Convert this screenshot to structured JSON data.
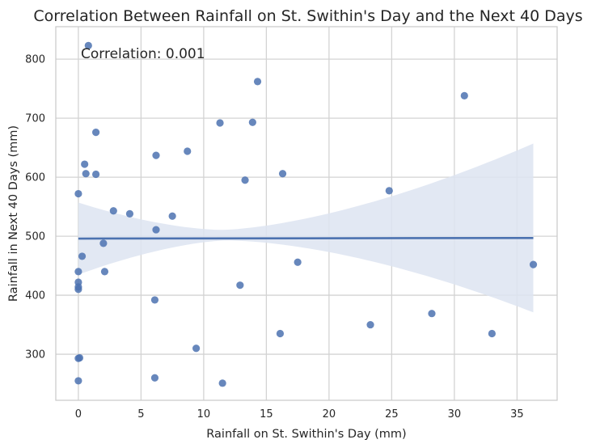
{
  "chart_data": {
    "type": "scatter",
    "title": "Correlation Between Rainfall on St. Swithin's Day and the Next 40 Days",
    "xlabel": "Rainfall on St. Swithin's Day (mm)",
    "ylabel": "Rainfall in Next 40 Days (mm)",
    "xlim": [
      -1.8,
      38.2
    ],
    "ylim": [
      222,
      855
    ],
    "xticks": [
      0,
      5,
      10,
      15,
      20,
      25,
      30,
      35
    ],
    "yticks": [
      300,
      400,
      500,
      600,
      700,
      800
    ],
    "grid": true,
    "annotation": "Correlation: 0.001",
    "colors": {
      "points": "#4c72b0",
      "line": "#4c72b0",
      "band": "#dde4f1",
      "grid": "#d3d3d3",
      "frame": "#cccccc"
    },
    "points": [
      {
        "x": 0.8,
        "y": 823
      },
      {
        "x": 0.5,
        "y": 622
      },
      {
        "x": 0.6,
        "y": 606
      },
      {
        "x": 1.4,
        "y": 676
      },
      {
        "x": 1.4,
        "y": 605
      },
      {
        "x": 0.0,
        "y": 572
      },
      {
        "x": 2.8,
        "y": 543
      },
      {
        "x": 4.1,
        "y": 538
      },
      {
        "x": 2.0,
        "y": 488
      },
      {
        "x": 0.3,
        "y": 466
      },
      {
        "x": 0.0,
        "y": 440
      },
      {
        "x": 2.1,
        "y": 440
      },
      {
        "x": 0.0,
        "y": 422
      },
      {
        "x": 0.0,
        "y": 414
      },
      {
        "x": 0.0,
        "y": 410
      },
      {
        "x": 0.1,
        "y": 294
      },
      {
        "x": 0.0,
        "y": 293
      },
      {
        "x": 0.0,
        "y": 255
      },
      {
        "x": 6.2,
        "y": 637
      },
      {
        "x": 6.2,
        "y": 511
      },
      {
        "x": 6.1,
        "y": 392
      },
      {
        "x": 6.1,
        "y": 260
      },
      {
        "x": 7.5,
        "y": 534
      },
      {
        "x": 8.7,
        "y": 644
      },
      {
        "x": 9.4,
        "y": 310
      },
      {
        "x": 11.3,
        "y": 692
      },
      {
        "x": 11.5,
        "y": 251
      },
      {
        "x": 12.9,
        "y": 417
      },
      {
        "x": 13.3,
        "y": 595
      },
      {
        "x": 13.9,
        "y": 693
      },
      {
        "x": 14.3,
        "y": 762
      },
      {
        "x": 16.1,
        "y": 335
      },
      {
        "x": 16.3,
        "y": 606
      },
      {
        "x": 17.5,
        "y": 456
      },
      {
        "x": 23.3,
        "y": 350
      },
      {
        "x": 24.8,
        "y": 577
      },
      {
        "x": 28.2,
        "y": 369
      },
      {
        "x": 30.8,
        "y": 738
      },
      {
        "x": 33.0,
        "y": 335
      },
      {
        "x": 36.3,
        "y": 452
      }
    ],
    "regression": {
      "x": [
        0,
        36.3
      ],
      "y": [
        496,
        497
      ]
    },
    "confidence_band": {
      "x": [
        0,
        36.3
      ],
      "upper": [
        557,
        657
      ],
      "lower": [
        435,
        371
      ]
    }
  }
}
